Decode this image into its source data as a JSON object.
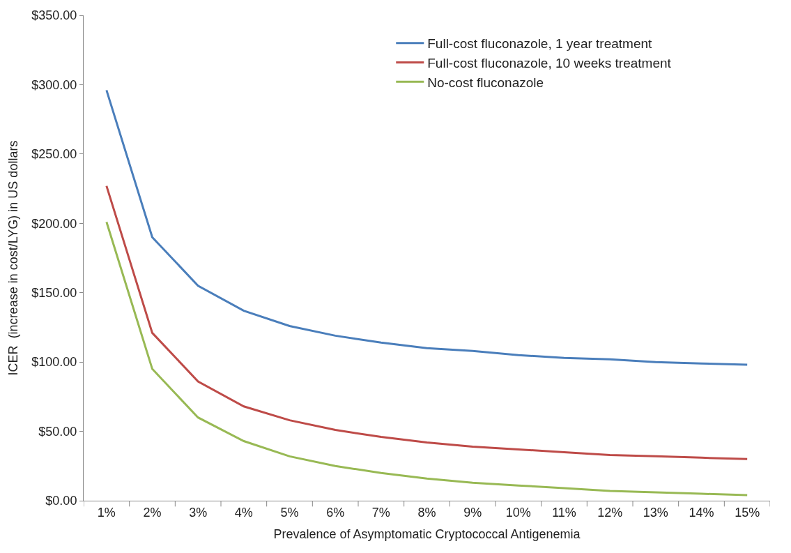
{
  "chart_data": {
    "type": "line",
    "xlabel": "Prevalence of Asymptomatic Cryptococcal Antigenemia",
    "ylabel": "ICER  (increase in cost/LYG) in US dollars",
    "categories": [
      "1%",
      "2%",
      "3%",
      "4%",
      "5%",
      "6%",
      "7%",
      "8%",
      "9%",
      "10%",
      "11%",
      "12%",
      "13%",
      "14%",
      "15%"
    ],
    "series": [
      {
        "name": "Full-cost fluconazole, 1 year treatment",
        "color": "#4a7ebb",
        "values": [
          296,
          190,
          155,
          137,
          126,
          119,
          114,
          110,
          108,
          105,
          103,
          102,
          100,
          99,
          98
        ]
      },
      {
        "name": "Full-cost fluconazole, 10 weeks treatment",
        "color": "#be4b48",
        "values": [
          227,
          121,
          86,
          68,
          58,
          51,
          46,
          42,
          39,
          37,
          35,
          33,
          32,
          31,
          30
        ]
      },
      {
        "name": "No-cost fluconazole",
        "color": "#98b954",
        "values": [
          201,
          95,
          60,
          43,
          32,
          25,
          20,
          16,
          13,
          11,
          9,
          7,
          6,
          5,
          4
        ]
      }
    ],
    "ylim": [
      0,
      350
    ],
    "yticks": [
      {
        "value": 0,
        "label": "$0.00"
      },
      {
        "value": 50,
        "label": "$50.00"
      },
      {
        "value": 100,
        "label": "$100.00"
      },
      {
        "value": 150,
        "label": "$150.00"
      },
      {
        "value": 200,
        "label": "$200.00"
      },
      {
        "value": 250,
        "label": "$250.00"
      },
      {
        "value": 300,
        "label": "$300.00"
      },
      {
        "value": 350,
        "label": "$350.00"
      }
    ],
    "legend": "top right",
    "marker": "none",
    "line_style": "solid"
  }
}
